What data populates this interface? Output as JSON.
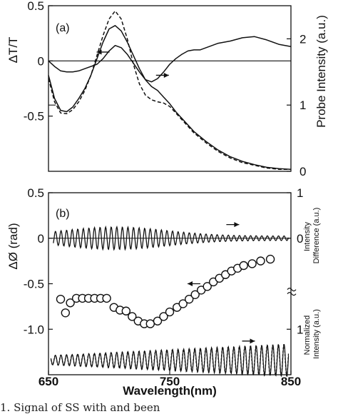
{
  "chart_data": [
    {
      "panel_label": "(a)",
      "type": "line",
      "ylabel": "ΔT/T",
      "ylabel_right": "Probe Intensity (a.u.)",
      "xlim": [
        650,
        850
      ],
      "ylim": [
        -1.0,
        0.5
      ],
      "yticks": [
        {
          "v": 0.5,
          "label": "0.5"
        },
        {
          "v": 0.0,
          "label": "0"
        },
        {
          "v": -0.5,
          "label": "-0.5"
        }
      ],
      "ylim_right": [
        0,
        2.5
      ],
      "yticks_right": [
        {
          "v": 0,
          "label": "0"
        },
        {
          "v": 1,
          "label": "1"
        },
        {
          "v": 2,
          "label": "2"
        }
      ],
      "series": [
        {
          "axis": "left",
          "style": "solid",
          "x": [
            650,
            655,
            660,
            665,
            670,
            675,
            680,
            690,
            695,
            700,
            705,
            710,
            715,
            720,
            725,
            730,
            735,
            740,
            745,
            750,
            755,
            760,
            765,
            770,
            775,
            780,
            790,
            800,
            810,
            820,
            830,
            840,
            850
          ],
          "y": [
            0.0,
            -0.05,
            -0.09,
            -0.1,
            -0.1,
            -0.09,
            -0.07,
            -0.03,
            0.02,
            0.09,
            0.14,
            0.12,
            0.06,
            -0.02,
            -0.1,
            -0.17,
            -0.19,
            -0.16,
            -0.1,
            -0.03,
            0.02,
            0.06,
            0.09,
            0.1,
            0.1,
            0.12,
            0.16,
            0.18,
            0.21,
            0.22,
            0.19,
            0.15,
            0.13
          ]
        },
        {
          "axis": "right",
          "style": "solid",
          "x": [
            650,
            655,
            660,
            665,
            670,
            675,
            680,
            685,
            690,
            695,
            700,
            705,
            710,
            715,
            720,
            725,
            730,
            735,
            740,
            745,
            750,
            755,
            760,
            765,
            770,
            780,
            790,
            800,
            810,
            820,
            830,
            840,
            850
          ],
          "y": [
            1.45,
            1.1,
            0.92,
            0.9,
            0.97,
            1.1,
            1.25,
            1.45,
            1.7,
            1.95,
            2.15,
            2.2,
            2.12,
            1.95,
            1.75,
            1.55,
            1.38,
            1.28,
            1.22,
            1.12,
            1.02,
            0.9,
            0.8,
            0.7,
            0.6,
            0.45,
            0.32,
            0.22,
            0.15,
            0.1,
            0.06,
            0.04,
            0.03
          ]
        },
        {
          "axis": "right",
          "style": "dashed",
          "x": [
            650,
            655,
            660,
            665,
            670,
            675,
            680,
            685,
            690,
            695,
            700,
            705,
            710,
            715,
            720,
            725,
            730,
            735,
            740,
            745,
            750,
            755,
            760,
            765,
            770,
            780,
            790,
            800,
            810,
            820,
            830,
            840,
            850
          ],
          "y": [
            1.4,
            1.05,
            0.88,
            0.87,
            0.93,
            1.05,
            1.22,
            1.45,
            1.75,
            2.05,
            2.3,
            2.42,
            2.3,
            2.0,
            1.62,
            1.32,
            1.15,
            1.08,
            1.05,
            1.03,
            0.98,
            0.88,
            0.78,
            0.68,
            0.58,
            0.43,
            0.3,
            0.2,
            0.13,
            0.09,
            0.05,
            0.03,
            0.03
          ]
        }
      ],
      "arrows": [
        {
          "x": 695,
          "y": 0.08,
          "dir": "left",
          "axis": "left"
        },
        {
          "x": 744,
          "y": 1.45,
          "dir": "right",
          "axis": "right"
        }
      ]
    },
    {
      "panel_label": "(b)",
      "type": "line+scatter",
      "ylabel": "ΔØ (rad)",
      "ylabel_right_top": "Intensity Difference (a.u.)",
      "ylabel_right_bottom": "Normalized Intensity (a.u.)",
      "xlabel": "Wavelength(nm)",
      "xlim": [
        650,
        850
      ],
      "ylim": [
        -1.5,
        0.5
      ],
      "yticks": [
        {
          "v": 0.5,
          "label": "0.5"
        },
        {
          "v": 0.0,
          "label": "0"
        },
        {
          "v": -0.5,
          "label": "-0.5"
        },
        {
          "v": -1.0,
          "label": "-1.0"
        }
      ],
      "xticks": [
        {
          "v": 650,
          "label": "650"
        },
        {
          "v": 750,
          "label": "750"
        },
        {
          "v": 850,
          "label": "850"
        }
      ],
      "yticks_right": [
        {
          "v": 0.5,
          "label": "1"
        },
        {
          "v": 0.0,
          "label": "0"
        },
        {
          "v": -1.0,
          "label": "1"
        }
      ],
      "difference_trace": {
        "baseline": 0.0,
        "period_nm": 4.6,
        "amplitude_peak": 0.1,
        "amplitude_peak_at": 705
      },
      "normalized_trace": {
        "baseline": -1.34,
        "period_nm": 4.6,
        "amplitude_start": 0.05,
        "amplitude_end": 0.18
      },
      "circles": [
        {
          "x": 660,
          "y": -0.67
        },
        {
          "x": 664,
          "y": -0.82
        },
        {
          "x": 668,
          "y": -0.71
        },
        {
          "x": 673,
          "y": -0.66
        },
        {
          "x": 678,
          "y": -0.66
        },
        {
          "x": 683,
          "y": -0.66
        },
        {
          "x": 688,
          "y": -0.66
        },
        {
          "x": 693,
          "y": -0.66
        },
        {
          "x": 698,
          "y": -0.66
        },
        {
          "x": 704,
          "y": -0.76
        },
        {
          "x": 709,
          "y": -0.79
        },
        {
          "x": 714,
          "y": -0.8
        },
        {
          "x": 719,
          "y": -0.86
        },
        {
          "x": 724,
          "y": -0.91
        },
        {
          "x": 729,
          "y": -0.94
        },
        {
          "x": 734,
          "y": -0.94
        },
        {
          "x": 740,
          "y": -0.91
        },
        {
          "x": 745,
          "y": -0.86
        },
        {
          "x": 750,
          "y": -0.81
        },
        {
          "x": 756,
          "y": -0.76
        },
        {
          "x": 761,
          "y": -0.72
        },
        {
          "x": 766,
          "y": -0.67
        },
        {
          "x": 771,
          "y": -0.62
        },
        {
          "x": 776,
          "y": -0.57
        },
        {
          "x": 781,
          "y": -0.53
        },
        {
          "x": 786,
          "y": -0.48
        },
        {
          "x": 791,
          "y": -0.44
        },
        {
          "x": 796,
          "y": -0.4
        },
        {
          "x": 801,
          "y": -0.36
        },
        {
          "x": 806,
          "y": -0.33
        },
        {
          "x": 811,
          "y": -0.3
        },
        {
          "x": 818,
          "y": -0.28
        },
        {
          "x": 825,
          "y": -0.25
        },
        {
          "x": 833,
          "y": -0.23
        }
      ],
      "arrows": [
        {
          "x": 802,
          "y": 0.15,
          "dir": "right"
        },
        {
          "x": 770,
          "y": -0.5,
          "dir": "left"
        },
        {
          "x": 815,
          "y": -1.13,
          "dir": "right"
        }
      ]
    }
  ],
  "caption": "1.  Signal of  SS  with  and  been"
}
